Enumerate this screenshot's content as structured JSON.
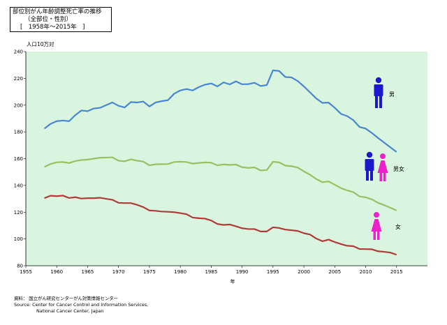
{
  "title": {
    "line1": "部位別がん年齢調整死亡率の推移",
    "line2": "（全部位・性別）",
    "line3": "[　1958年～2015年　]"
  },
  "footer": {
    "line1": "資料：  国立がん研究センターがん対策情報センター",
    "line2": "Source: Center for Cancer Control and Information Services,",
    "line3": "National Cancer Center, Japan"
  },
  "colors": {
    "plot_bg": "#d9f5e0",
    "male": "#4a86cf",
    "both": "#9bbf62",
    "female": "#b03a3a",
    "icon_male": "#1a1acc",
    "icon_female": "#ee22cc"
  },
  "chart_data": {
    "type": "line",
    "xlabel": "年",
    "ylabel": "人口10万対",
    "xlim": [
      1955,
      2020
    ],
    "ylim": [
      80,
      240
    ],
    "xticks": [
      "1955",
      "1960",
      "1965",
      "1970",
      "1975",
      "1980",
      "1985",
      "1990",
      "1995",
      "2000",
      "2005",
      "2010",
      "2015"
    ],
    "yticks": [
      "80",
      "100",
      "120",
      "140",
      "160",
      "180",
      "200",
      "220",
      "240"
    ],
    "grid": false,
    "x": [
      1958,
      1959,
      1960,
      1961,
      1962,
      1963,
      1964,
      1965,
      1966,
      1967,
      1968,
      1969,
      1970,
      1971,
      1972,
      1973,
      1974,
      1975,
      1976,
      1977,
      1978,
      1979,
      1980,
      1981,
      1982,
      1983,
      1984,
      1985,
      1986,
      1987,
      1988,
      1989,
      1990,
      1991,
      1992,
      1993,
      1994,
      1995,
      1996,
      1997,
      1998,
      1999,
      2000,
      2001,
      2002,
      2003,
      2004,
      2005,
      2006,
      2007,
      2008,
      2009,
      2010,
      2011,
      2012,
      2013,
      2014,
      2015
    ],
    "series": [
      {
        "name": "男",
        "color_key": "male",
        "values": [
          182.5,
          186,
          188,
          188.5,
          188,
          192.5,
          196,
          195.5,
          197.5,
          198,
          200,
          202,
          199.5,
          198.3,
          202.3,
          202,
          202.7,
          199,
          202,
          203,
          203.7,
          208.5,
          211,
          212,
          211,
          213.5,
          215.3,
          216.2,
          214,
          217,
          215.5,
          217.8,
          215.6,
          215.7,
          216.7,
          214.3,
          215,
          226,
          225.5,
          221,
          220.7,
          218,
          214,
          209.5,
          205,
          201.7,
          201.9,
          198,
          193.5,
          191.8,
          188.8,
          183.7,
          182.5,
          179.2,
          175.5,
          172,
          168.5,
          165
        ]
      },
      {
        "name": "男女",
        "color_key": "both",
        "values": [
          153.8,
          156,
          157.3,
          157.5,
          156.7,
          158.2,
          159,
          159.3,
          160,
          160.7,
          160.8,
          161,
          158.5,
          158,
          159.5,
          158.5,
          157.8,
          155,
          155.8,
          155.9,
          156,
          157.5,
          157.7,
          157.5,
          156.3,
          156.8,
          157.2,
          157,
          155,
          155.7,
          155.3,
          155.6,
          153.6,
          153.1,
          153.5,
          151.2,
          151.5,
          157.7,
          157.2,
          154.8,
          154.4,
          153.4,
          150.5,
          148,
          144.8,
          142.4,
          143,
          140.5,
          138,
          136.3,
          135,
          131.8,
          131.1,
          129.6,
          127,
          125.3,
          123.3,
          121.3
        ]
      },
      {
        "name": "女",
        "color_key": "female",
        "values": [
          130.5,
          132.3,
          132,
          132.4,
          130.6,
          131.2,
          130.2,
          130.5,
          130.5,
          130.8,
          130,
          129.3,
          127,
          126.8,
          126.8,
          125.5,
          123.8,
          121.3,
          121,
          120.5,
          120.3,
          120,
          119.3,
          118.5,
          116,
          115.5,
          115.2,
          113.8,
          111.2,
          110.5,
          110.8,
          109.5,
          108,
          107.4,
          107.4,
          105.6,
          105.6,
          108.7,
          108.2,
          107,
          106.5,
          106,
          104.3,
          103.3,
          100.3,
          98.3,
          99.5,
          97.7,
          96.2,
          94.9,
          94.6,
          92.5,
          92.4,
          92.3,
          90.8,
          90.4,
          89.8,
          88.2
        ]
      }
    ],
    "annotations": [
      "男",
      "男女",
      "女"
    ]
  }
}
